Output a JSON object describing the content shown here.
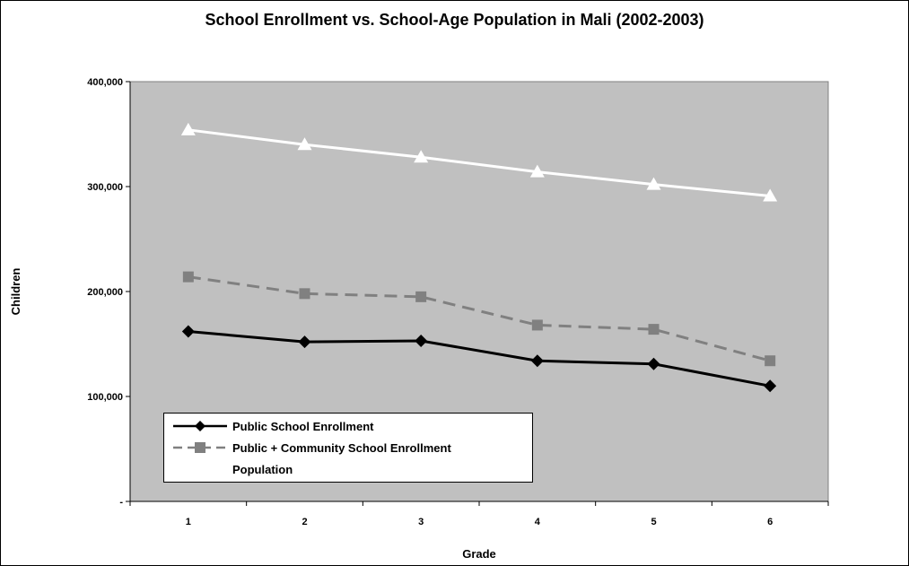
{
  "chart_data": {
    "type": "line",
    "title": "School Enrollment vs. School-Age Population in Mali (2002-2003)",
    "xlabel": "Grade",
    "ylabel": "Children",
    "categories": [
      "1",
      "2",
      "3",
      "4",
      "5",
      "6"
    ],
    "ylim": [
      0,
      400000
    ],
    "yticks": [
      {
        "value": 0,
        "label": "-"
      },
      {
        "value": 100000,
        "label": "100,000"
      },
      {
        "value": 200000,
        "label": "200,000"
      },
      {
        "value": 300000,
        "label": "300,000"
      },
      {
        "value": 400000,
        "label": "400,000"
      }
    ],
    "grid": false,
    "plot_background": "#c0c0c0",
    "legend_position": "bottom-left inside plot",
    "series": [
      {
        "name": "Public School Enrollment",
        "values": [
          162000,
          152000,
          153000,
          134000,
          131000,
          110000
        ],
        "color": "#000000",
        "marker": "diamond",
        "dash": "solid"
      },
      {
        "name": "Public + Community School Enrollment",
        "values": [
          214000,
          198000,
          195000,
          168000,
          164000,
          134000
        ],
        "color": "#808080",
        "marker": "square",
        "dash": "dashed"
      },
      {
        "name": "Population",
        "values": [
          354000,
          340000,
          328000,
          314000,
          302000,
          291000
        ],
        "color": "#ffffff",
        "marker": "triangle",
        "dash": "solid"
      }
    ]
  }
}
